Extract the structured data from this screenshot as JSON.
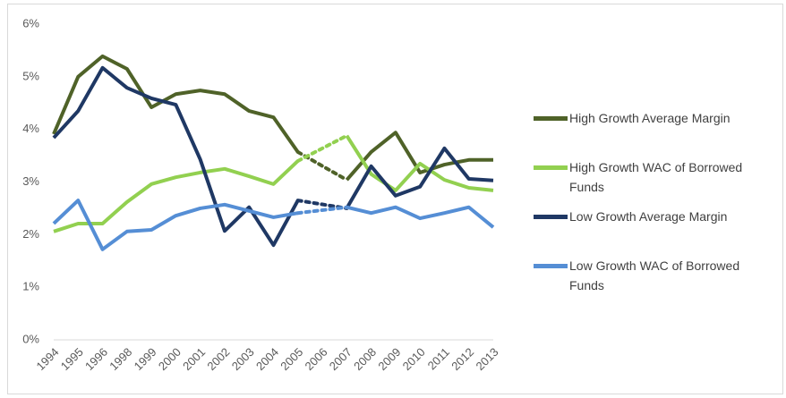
{
  "chart_data": {
    "type": "line",
    "categories": [
      "1994",
      "1995",
      "1996",
      "1998",
      "1999",
      "2000",
      "2001",
      "2002",
      "2003",
      "2004",
      "2005",
      "2006",
      "2007",
      "2008",
      "2009",
      "2010",
      "2011",
      "2012",
      "2013"
    ],
    "ylim": [
      0,
      6
    ],
    "yticks": [
      {
        "value": 0,
        "label": "0%"
      },
      {
        "value": 1,
        "label": "1%"
      },
      {
        "value": 2,
        "label": "2%"
      },
      {
        "value": 3,
        "label": "3%"
      },
      {
        "value": 4,
        "label": "4%"
      },
      {
        "value": 5,
        "label": "5%"
      },
      {
        "value": 6,
        "label": "6%"
      }
    ],
    "gap_style": "dotted",
    "legend": "right",
    "series": [
      {
        "name": "High Growth Average Margin",
        "color": "#4f6228",
        "values": [
          3.91,
          5.0,
          5.39,
          5.15,
          4.42,
          4.67,
          4.74,
          4.67,
          4.35,
          4.23,
          3.57,
          null,
          3.04,
          3.57,
          3.94,
          3.18,
          3.33,
          3.42,
          3.42
        ]
      },
      {
        "name": "High Growth WAC of Borrowed Funds",
        "color": "#92d050",
        "values": [
          2.06,
          2.21,
          2.21,
          2.62,
          2.96,
          3.09,
          3.18,
          3.25,
          3.11,
          2.96,
          3.4,
          null,
          3.88,
          3.15,
          2.84,
          3.35,
          3.04,
          2.89,
          2.84
        ]
      },
      {
        "name": "Low Growth Average Margin",
        "color": "#1f3864",
        "values": [
          3.84,
          4.35,
          5.17,
          4.79,
          4.59,
          4.47,
          3.43,
          2.07,
          2.52,
          1.8,
          2.65,
          null,
          2.5,
          3.3,
          2.74,
          2.91,
          3.64,
          3.06,
          3.03
        ]
      },
      {
        "name": "Low Growth WAC of Borrowed Funds",
        "color": "#558ed5",
        "values": [
          2.21,
          2.65,
          1.72,
          2.06,
          2.09,
          2.36,
          2.5,
          2.57,
          2.45,
          2.33,
          2.41,
          null,
          2.52,
          2.41,
          2.52,
          2.31,
          2.41,
          2.52,
          2.14
        ]
      }
    ]
  }
}
